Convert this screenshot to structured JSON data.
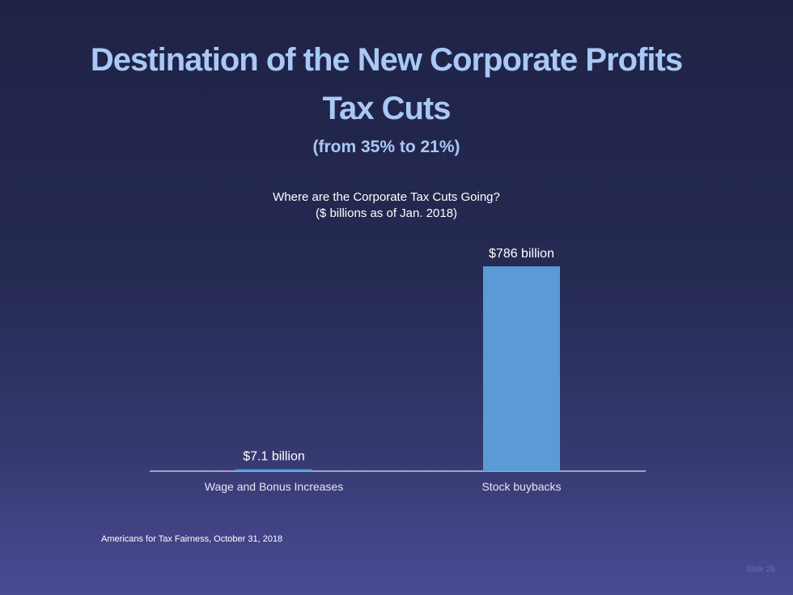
{
  "title_line1": "Destination of the New Corporate Profits",
  "title_line2": "Tax Cuts",
  "subtitle": "(from 35% to 21%)",
  "source": "Americans for Tax Fairness, October 31, 2018",
  "slide_number": "Slide 26",
  "chart_data": {
    "type": "bar",
    "title": "Where are the Corporate Tax Cuts Going?",
    "subtitle": "($ billions as of Jan. 2018)",
    "categories": [
      "Wage and Bonus Increases",
      "Stock buybacks"
    ],
    "values": [
      7.1,
      786
    ],
    "data_labels": [
      "$7.1 billion",
      "$786 billion"
    ],
    "ylim": [
      0,
      786
    ],
    "grid": false,
    "bar_color": "#5b9bd5"
  }
}
